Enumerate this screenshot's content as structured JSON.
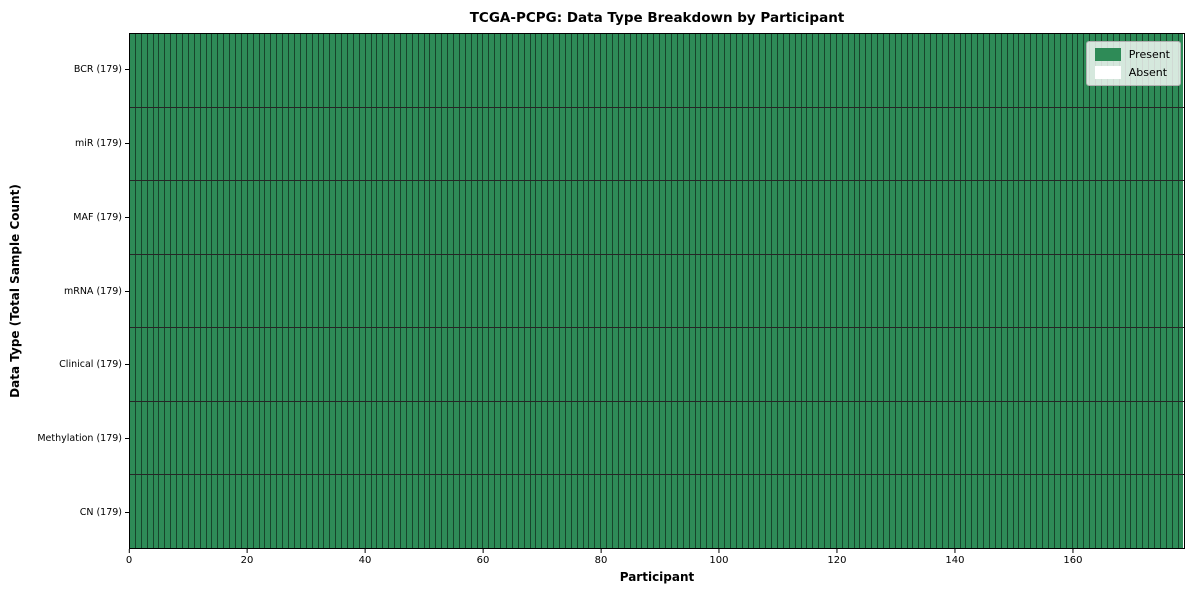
{
  "colors": {
    "present": "#2e8b57",
    "absent": "#ffffff",
    "cell_border": "rgba(0,0,0,0.5)",
    "row_border": "rgba(0,0,0,0.85)",
    "plot_border": "#000000",
    "legend_bg": "rgba(255,255,255,0.8)",
    "legend_edge": "#b0b0b0"
  },
  "chart_data": {
    "type": "heatmap",
    "title": "TCGA-PCPG: Data Type Breakdown by Participant",
    "xlabel": "Participant",
    "ylabel": "Data Type (Total Sample Count)",
    "x_min": 0,
    "x_max": 179,
    "n_participants": 179,
    "x_ticks": [
      0,
      20,
      40,
      60,
      80,
      100,
      120,
      140,
      160
    ],
    "rows": [
      {
        "label": "BCR (179)",
        "data_type": "BCR",
        "total": 179,
        "present_count": 179,
        "absent_count": 0
      },
      {
        "label": "miR (179)",
        "data_type": "miR",
        "total": 179,
        "present_count": 179,
        "absent_count": 0
      },
      {
        "label": "MAF (179)",
        "data_type": "MAF",
        "total": 179,
        "present_count": 179,
        "absent_count": 0
      },
      {
        "label": "mRNA (179)",
        "data_type": "mRNA",
        "total": 179,
        "present_count": 179,
        "absent_count": 0
      },
      {
        "label": "Clinical (179)",
        "data_type": "Clinical",
        "total": 179,
        "present_count": 179,
        "absent_count": 0
      },
      {
        "label": "Methylation (179)",
        "data_type": "Methylation",
        "total": 179,
        "present_count": 179,
        "absent_count": 0
      },
      {
        "label": "CN (179)",
        "data_type": "CN",
        "total": 179,
        "present_count": 179,
        "absent_count": 0
      }
    ],
    "legend": {
      "position": "upper right",
      "entries": [
        {
          "label": "Present",
          "color": "#2e8b57"
        },
        {
          "label": "Absent",
          "color": "#ffffff"
        }
      ]
    },
    "grid": "cell-borders-on",
    "notes": "Every cell is Present (green); no Absent cells are visible."
  }
}
